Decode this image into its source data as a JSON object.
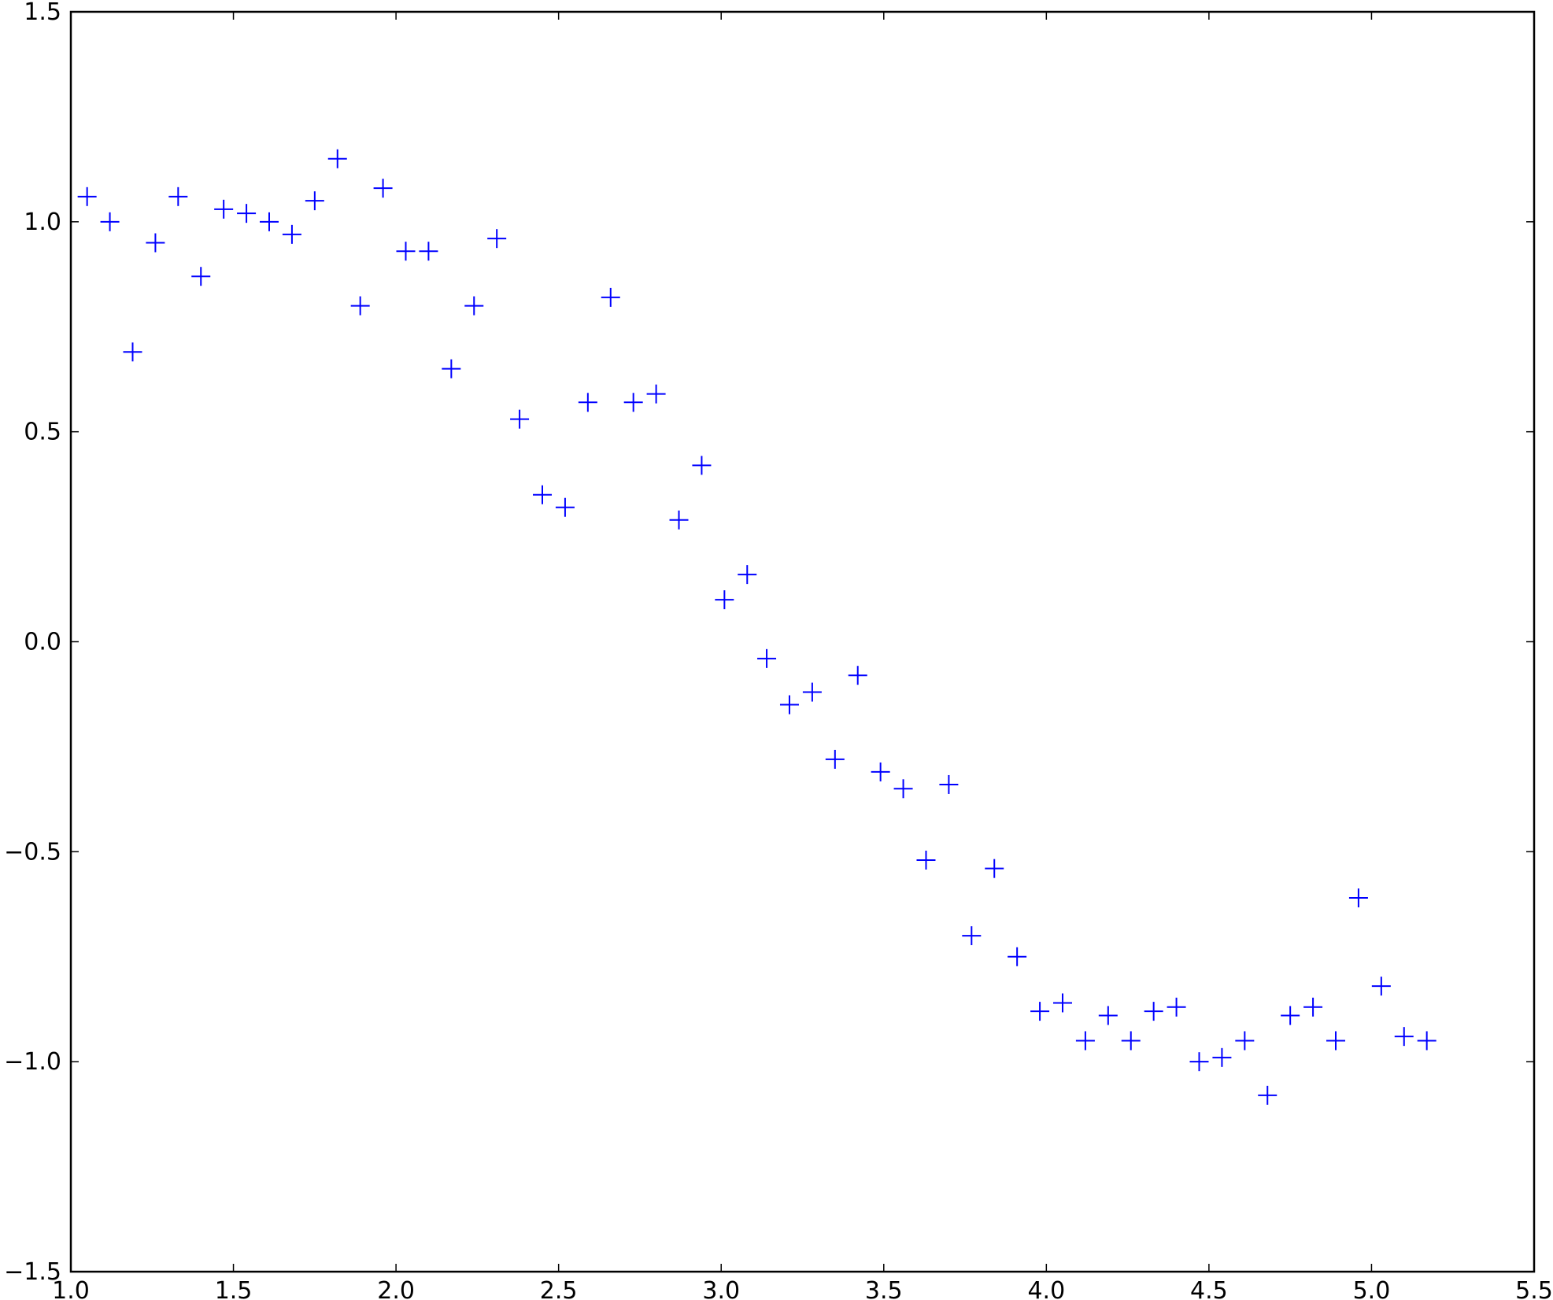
{
  "chart_data": {
    "type": "scatter",
    "title": "",
    "xlabel": "",
    "ylabel": "",
    "xlim": [
      1.0,
      5.5
    ],
    "ylim": [
      -1.5,
      1.5
    ],
    "x_ticks": [
      1.0,
      1.5,
      2.0,
      2.5,
      3.0,
      3.5,
      4.0,
      4.5,
      5.0,
      5.5
    ],
    "y_ticks": [
      -1.5,
      -1.0,
      -0.5,
      0.0,
      0.5,
      1.0,
      1.5
    ],
    "x_tick_labels": [
      "1.0",
      "1.5",
      "2.0",
      "2.5",
      "3.0",
      "3.5",
      "4.0",
      "4.5",
      "5.0",
      "5.5"
    ],
    "y_tick_labels": [
      "−1.5",
      "−1.0",
      "−0.5",
      "0.0",
      "0.5",
      "1.0",
      "1.5"
    ],
    "grid": false,
    "marker": "plus",
    "color": "#0000ff",
    "series": [
      {
        "x": [
          1.05,
          1.12,
          1.19,
          1.26,
          1.33,
          1.4,
          1.47,
          1.54,
          1.61,
          1.68,
          1.75,
          1.82,
          1.89,
          1.96,
          2.03,
          2.1,
          2.17,
          2.24,
          2.31,
          2.38,
          2.45,
          2.52,
          2.59,
          2.66,
          2.73,
          2.8,
          2.87,
          2.94,
          3.01,
          3.08,
          3.14,
          3.21,
          3.28,
          3.35,
          3.42,
          3.49,
          3.56,
          3.63,
          3.7,
          3.77,
          3.84,
          3.91,
          3.98,
          4.05,
          4.12,
          4.19,
          4.26,
          4.33,
          4.4,
          4.47,
          4.54,
          4.61,
          4.68,
          4.75,
          4.82,
          4.89,
          4.96,
          5.03,
          5.1,
          5.17
        ],
        "y": [
          1.06,
          1.0,
          0.69,
          0.95,
          1.06,
          0.87,
          1.03,
          1.02,
          1.0,
          0.97,
          1.05,
          1.15,
          0.8,
          1.08,
          0.93,
          0.93,
          0.65,
          0.8,
          0.96,
          0.53,
          0.35,
          0.32,
          0.57,
          0.82,
          0.57,
          0.59,
          0.29,
          0.42,
          0.1,
          0.16,
          -0.04,
          -0.15,
          -0.12,
          -0.28,
          -0.08,
          -0.31,
          -0.35,
          -0.52,
          -0.34,
          -0.7,
          -0.54,
          -0.75,
          -0.88,
          -0.86,
          -0.95,
          -0.89,
          -0.95,
          -0.88,
          -0.87,
          -1.0,
          -0.99,
          -0.95,
          -1.08,
          -0.89,
          -0.87,
          -0.95,
          -0.61,
          -0.82,
          -0.94,
          -0.95
        ]
      }
    ]
  }
}
